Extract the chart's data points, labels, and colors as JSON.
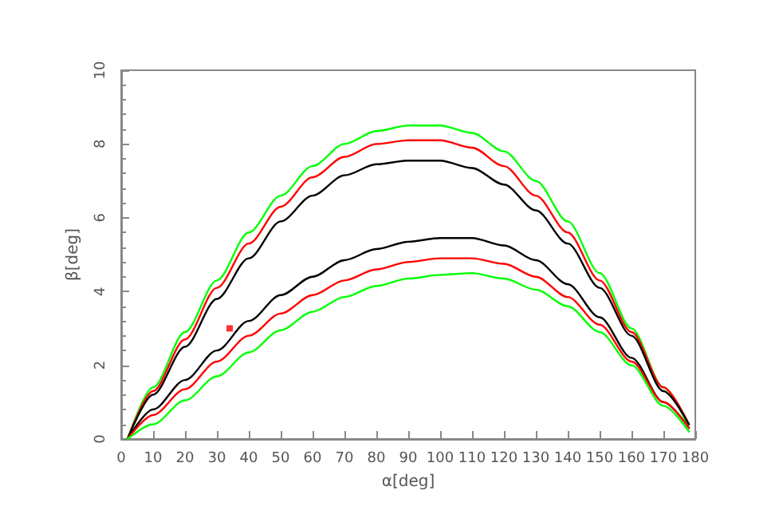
{
  "chart_data": {
    "type": "line",
    "xlabel": "α[deg]",
    "ylabel": "β[deg]",
    "x": [
      2,
      10,
      20,
      30,
      40,
      50,
      60,
      70,
      80,
      90,
      100,
      110,
      120,
      130,
      140,
      150,
      160,
      170,
      178
    ],
    "xlim": [
      0,
      180
    ],
    "xticks": [
      0,
      10,
      20,
      30,
      40,
      50,
      60,
      70,
      80,
      90,
      100,
      110,
      120,
      130,
      140,
      150,
      160,
      170,
      180
    ],
    "ylim": [
      0,
      10
    ],
    "yticks": [
      0,
      2,
      4,
      6,
      8,
      10
    ],
    "grid": false,
    "marker": "none",
    "line_style": "solid",
    "series": [
      {
        "color": "#00ff00",
        "values": [
          0,
          1.4,
          2.9,
          4.3,
          5.6,
          6.6,
          7.4,
          8.0,
          8.35,
          8.5,
          8.5,
          8.3,
          7.8,
          7.0,
          5.9,
          4.5,
          3.0,
          1.4,
          0.3
        ]
      },
      {
        "color": "#ff0000",
        "values": [
          0,
          1.3,
          2.7,
          4.1,
          5.3,
          6.3,
          7.1,
          7.65,
          8.0,
          8.1,
          8.1,
          7.9,
          7.4,
          6.6,
          5.6,
          4.3,
          2.9,
          1.4,
          0.4
        ]
      },
      {
        "color": "#000000",
        "values": [
          0,
          1.2,
          2.5,
          3.8,
          4.9,
          5.9,
          6.6,
          7.15,
          7.45,
          7.55,
          7.55,
          7.35,
          6.9,
          6.2,
          5.3,
          4.1,
          2.8,
          1.3,
          0.4
        ]
      },
      {
        "color": "#000000",
        "values": [
          0,
          0.8,
          1.6,
          2.4,
          3.2,
          3.9,
          4.4,
          4.85,
          5.15,
          5.35,
          5.45,
          5.45,
          5.25,
          4.85,
          4.2,
          3.3,
          2.2,
          1.0,
          0.3
        ]
      },
      {
        "color": "#ff0000",
        "values": [
          0,
          0.65,
          1.35,
          2.1,
          2.8,
          3.4,
          3.9,
          4.3,
          4.6,
          4.8,
          4.9,
          4.9,
          4.75,
          4.4,
          3.85,
          3.1,
          2.1,
          1.0,
          0.3
        ]
      },
      {
        "color": "#00ff00",
        "values": [
          0,
          0.4,
          1.05,
          1.7,
          2.35,
          2.95,
          3.45,
          3.85,
          4.15,
          4.35,
          4.45,
          4.5,
          4.35,
          4.05,
          3.6,
          2.9,
          2.0,
          0.9,
          0.2
        ]
      },
      {
        "type": "scatter",
        "marker": "square",
        "color": "#ff0000",
        "x": [
          34
        ],
        "values": [
          3.0
        ]
      }
    ]
  }
}
